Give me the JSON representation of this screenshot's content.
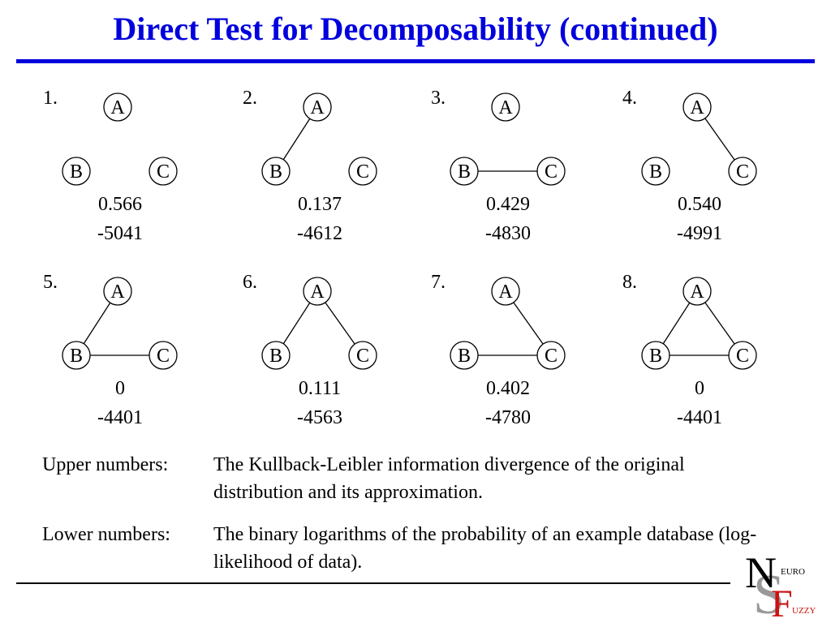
{
  "title": "Direct Test for Decomposability (continued)",
  "graphs": [
    {
      "label": "1.",
      "edges": [],
      "kl": "0.566",
      "loglik": "-5041"
    },
    {
      "label": "2.",
      "edges": [
        "A-B"
      ],
      "kl": "0.137",
      "loglik": "-4612"
    },
    {
      "label": "3.",
      "edges": [
        "B-C"
      ],
      "kl": "0.429",
      "loglik": "-4830"
    },
    {
      "label": "4.",
      "edges": [
        "A-C"
      ],
      "kl": "0.540",
      "loglik": "-4991"
    },
    {
      "label": "5.",
      "edges": [
        "A-B",
        "B-C"
      ],
      "kl": "0",
      "loglik": "-4401"
    },
    {
      "label": "6.",
      "edges": [
        "A-B",
        "A-C"
      ],
      "kl": "0.111",
      "loglik": "-4563"
    },
    {
      "label": "7.",
      "edges": [
        "B-C",
        "A-C"
      ],
      "kl": "0.402",
      "loglik": "-4780"
    },
    {
      "label": "8.",
      "edges": [
        "A-B",
        "B-C",
        "A-C"
      ],
      "kl": "0",
      "loglik": "-4401"
    }
  ],
  "node_labels": [
    "A",
    "B",
    "C"
  ],
  "legend": {
    "upper_term": "Upper numbers:",
    "upper_def": "The Kullback-Leibler information divergence of the original distribution and its approximation.",
    "lower_term": "Lower numbers:",
    "lower_def": "The binary logarithms of the probability of an example database (log-likelihood of data)."
  },
  "logo": {
    "big1": "N",
    "big2": "S",
    "big3": "F",
    "small1": "EURO",
    "small2": "UZZY"
  },
  "colors": {
    "title": "#0000dd",
    "logo_red": "#cc1111",
    "logo_gray": "#999999"
  }
}
